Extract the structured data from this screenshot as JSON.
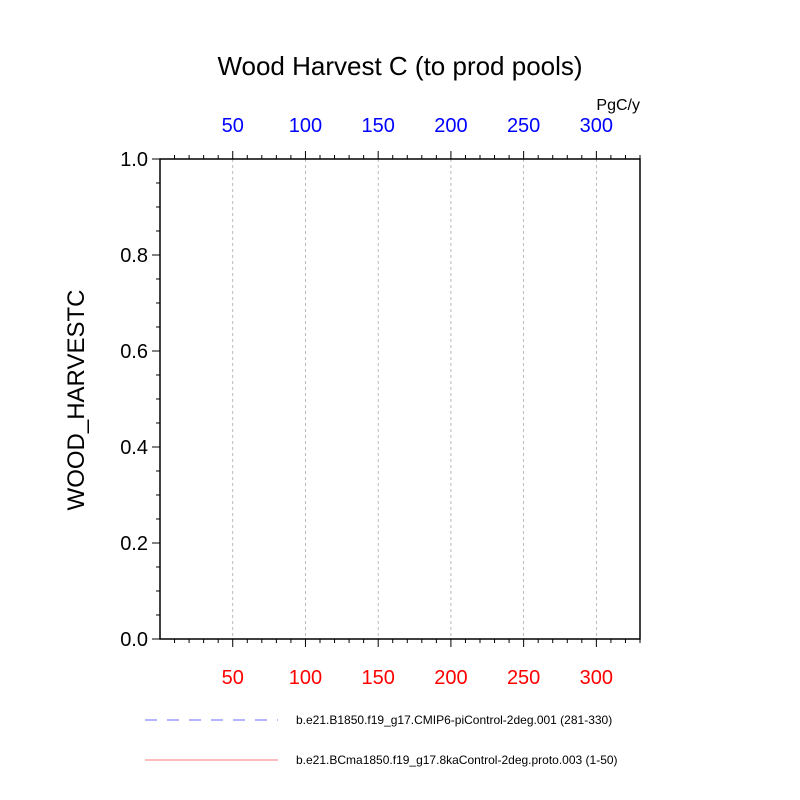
{
  "chart_data": {
    "type": "line",
    "title": "Wood Harvest C (to prod pools)",
    "units": "PgC/y",
    "ylabel": "WOOD_HARVESTC",
    "xlim": [
      0,
      330
    ],
    "ylim": [
      0,
      1
    ],
    "yticks": [
      0.0,
      0.2,
      0.4,
      0.6,
      0.8,
      1.0
    ],
    "ytick_labels": [
      "0.0",
      "0.2",
      "0.4",
      "0.6",
      "0.8",
      "1.0"
    ],
    "xticks_bottom": [
      50,
      100,
      150,
      200,
      250,
      300
    ],
    "xticks_top": [
      50,
      100,
      150,
      200,
      250,
      300
    ],
    "grid": "vertical dashed",
    "colors": {
      "bottom_axis": "#ff0000",
      "top_axis": "#0000ff",
      "series_1": "#6b6bff",
      "series_2": "#ff7a7a"
    },
    "series": [
      {
        "name": "b.e21.B1850.f19_g17.CMIP6-piControl-2deg.001 (281-330)",
        "style": "dashed",
        "color": "#6b6bff",
        "x": [
          281,
          330
        ],
        "y": [
          0,
          0
        ]
      },
      {
        "name": "b.e21.BCma1850.f19_g17.8kaControl-2deg.proto.003 (1-50)",
        "style": "solid",
        "color": "#ff7a7a",
        "x": [
          1,
          50
        ],
        "y": [
          0,
          0
        ]
      }
    ]
  }
}
